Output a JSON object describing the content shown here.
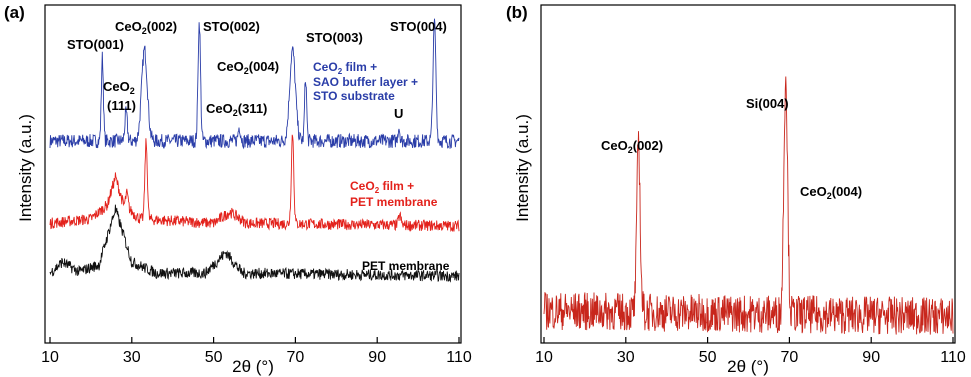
{
  "panels": [
    {
      "label": "(a)",
      "xlabel": "2θ (°)",
      "ylabel": "Intensity (a.u.)",
      "xticks": [
        "10",
        "30",
        "50",
        "70",
        "90",
        "110"
      ],
      "annotations": {
        "sto001": "STO(001)",
        "ceo2_002_a": "(002)",
        "ceo2_002_b": "CeO",
        "sto002": "STO(002)",
        "ceo2_111_a": "CeO",
        "ceo2_111_b": "(111)",
        "ceo2_004_a": "CeO",
        "ceo2_004_b": "(004)",
        "ceo2_311_a": "CeO",
        "ceo2_311_b": "(311)",
        "sto003": "STO(003)",
        "sto004": "STO(004)",
        "u_peak": "U",
        "sub2": "2",
        "blue_legend_1a": "CeO",
        "blue_legend_1b": " film +",
        "blue_legend_2": "SAO buffer layer +",
        "blue_legend_3": "STO substrate",
        "red_legend_1a": "CeO",
        "red_legend_1b": " film +",
        "red_legend_2": "PET membrane",
        "black_legend": "PET membrane"
      }
    },
    {
      "label": "(b)",
      "xlabel": "2θ (°)",
      "ylabel": "Intensity (a.u.)",
      "xticks": [
        "10",
        "30",
        "50",
        "70",
        "90",
        "110"
      ],
      "annotations": {
        "ceo2_002_a": "CeO",
        "ceo2_002_b": "(002)",
        "si004": "Si(004)",
        "ceo2_004_a": "CeO",
        "ceo2_004_b": "(004)",
        "sub2": "2"
      }
    }
  ],
  "colors": {
    "blue": "#2a3da8",
    "red": "#e3221c",
    "black": "#111111",
    "darkred": "#c8261c"
  },
  "chart_data": [
    {
      "type": "line",
      "xlim": [
        10,
        110
      ],
      "series": [
        {
          "color": "#2a3da8",
          "noise": 0.05,
          "baseline": [
            [
              10,
              0.1
            ],
            [
              110,
              0.1
            ]
          ],
          "peaks": [
            [
              22.8,
              0.6,
              0.25
            ],
            [
              28.6,
              0.2,
              0.3
            ],
            [
              33.1,
              0.65,
              0.7
            ],
            [
              46.5,
              0.85,
              0.3
            ],
            [
              56.3,
              0.1,
              0.3
            ],
            [
              69.3,
              0.65,
              0.7
            ],
            [
              72.5,
              0.45,
              0.25
            ],
            [
              95.3,
              0.1,
              0.25
            ],
            [
              104.0,
              0.85,
              0.35
            ]
          ]
        },
        {
          "color": "#e3221c",
          "noise": 0.04,
          "baseline": [
            [
              10,
              0.12
            ],
            [
              20,
              0.15
            ],
            [
              24,
              0.25
            ],
            [
              26,
              0.45
            ],
            [
              28,
              0.25
            ],
            [
              32,
              0.15
            ],
            [
              50,
              0.12
            ],
            [
              54,
              0.2
            ],
            [
              58,
              0.12
            ],
            [
              110,
              0.1
            ]
          ],
          "peaks": [
            [
              28.8,
              0.1,
              0.3
            ],
            [
              33.5,
              0.55,
              0.3
            ],
            [
              69.3,
              0.65,
              0.3
            ],
            [
              95.5,
              0.07,
              0.3
            ]
          ]
        },
        {
          "color": "#111111",
          "noise": 0.04,
          "baseline": [
            [
              10,
              0.12
            ],
            [
              13,
              0.2
            ],
            [
              17,
              0.13
            ],
            [
              22,
              0.18
            ],
            [
              26,
              0.58
            ],
            [
              30,
              0.2
            ],
            [
              36,
              0.12
            ],
            [
              48,
              0.12
            ],
            [
              53,
              0.27
            ],
            [
              57,
              0.12
            ],
            [
              110,
              0.1
            ]
          ],
          "peaks": []
        }
      ]
    },
    {
      "type": "line",
      "xlim": [
        10,
        110
      ],
      "series": [
        {
          "color": "#c8261c",
          "noise": 0.1,
          "baseline": [
            [
              10,
              0.1
            ],
            [
              110,
              0.07
            ]
          ],
          "peaks": [
            [
              33.1,
              0.9,
              0.4
            ],
            [
              69.1,
              1.25,
              0.45
            ]
          ]
        }
      ]
    }
  ]
}
